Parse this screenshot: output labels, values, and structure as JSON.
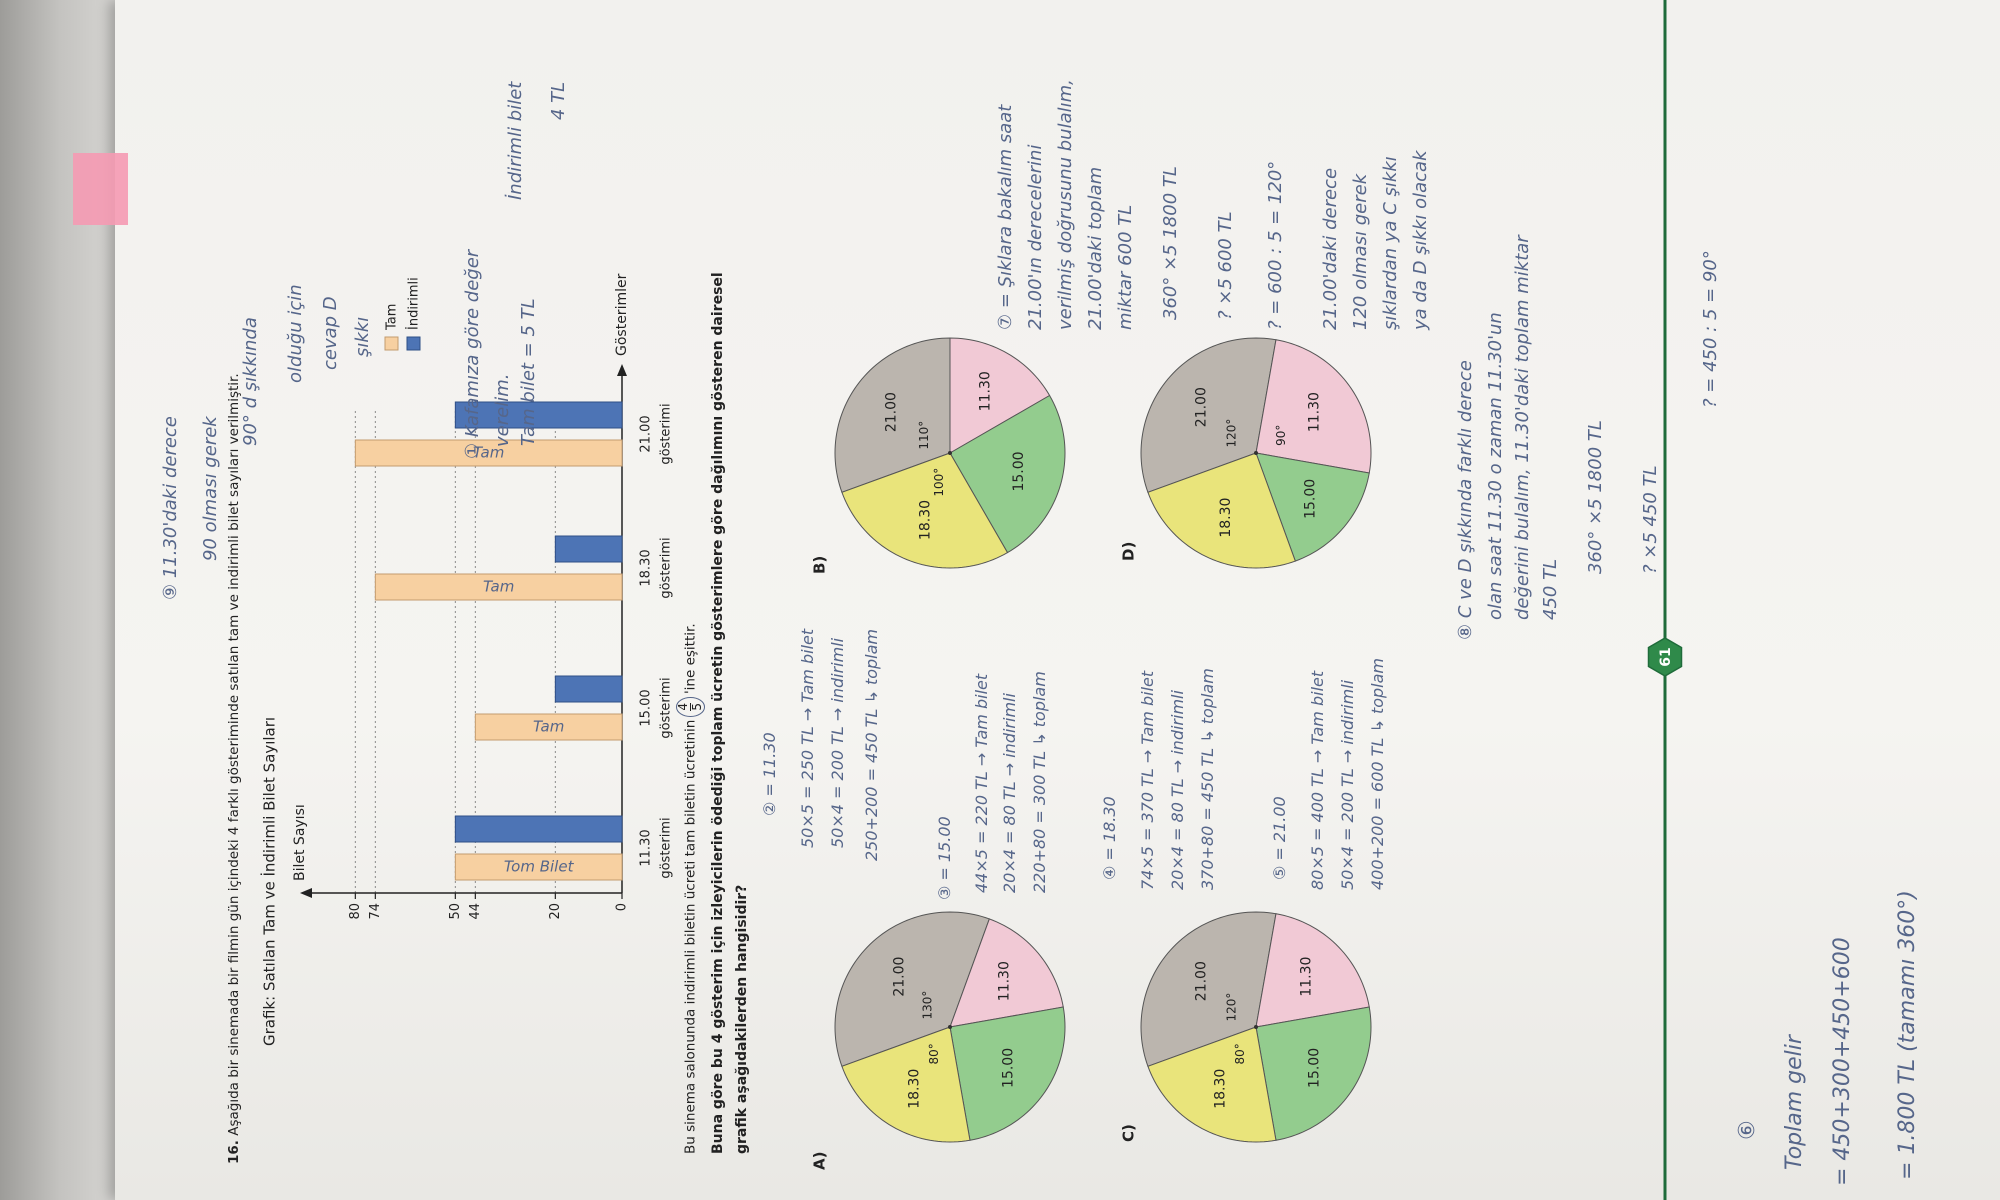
{
  "question": {
    "number": "16.",
    "text": "Aşağıda bir sinemada bir filmin gün içindeki 4 farklı gösteriminde satılan tam ve indirimli bilet sayıları verilmiştir."
  },
  "chart": {
    "type": "bar",
    "title": "Grafik: Satılan Tam ve İndirimli Bilet Sayıları",
    "y_label": "Bilet Sayısı",
    "x_label": "Gösterimler",
    "categories": [
      [
        "11.30",
        "gösterimi"
      ],
      [
        "15.00",
        "gösterimi"
      ],
      [
        "18.30",
        "gösterimi"
      ],
      [
        "21.00",
        "gösterimi"
      ]
    ],
    "series": [
      {
        "name": "Tam",
        "color": "#f7d0a1",
        "values": [
          50,
          44,
          74,
          80
        ]
      },
      {
        "name": "İndirimli",
        "color": "#4d74b5",
        "values": [
          50,
          20,
          20,
          50
        ]
      }
    ],
    "ylim": [
      0,
      90
    ],
    "yticks": [
      0,
      20,
      44,
      50,
      74,
      80
    ],
    "grid": "dotted"
  },
  "statement": {
    "before": "Bu sinema salonunda indirimli biletin ücreti tam biletin ücretinin",
    "numerator": 4,
    "denominator": 5,
    "after": "'ine eşittir."
  },
  "prompt": [
    "Buna göre bu 4 gösterim için izleyicilerin ödediği toplam ücretin gösterimlere göre dağılımını gösteren dairesel",
    "grafik aşağıdakilerden hangisidir?"
  ],
  "options": [
    {
      "letter": "A)",
      "slices": [
        {
          "name": "21.00",
          "color": "#bbb5ae",
          "value": 130,
          "label": "130°"
        },
        {
          "name": "11.30",
          "color": "#f1c9d5",
          "value": 60
        },
        {
          "name": "15.00",
          "color": "#93cc8e",
          "value": 90
        },
        {
          "name": "18.30",
          "color": "#e9e47b",
          "value": 80,
          "label": "80°"
        }
      ]
    },
    {
      "letter": "B)",
      "slices": [
        {
          "name": "21.00",
          "color": "#bbb5ae",
          "value": 110,
          "label": "110°"
        },
        {
          "name": "11.30",
          "color": "#f1c9d5",
          "value": 60
        },
        {
          "name": "15.00",
          "color": "#93cc8e",
          "value": 90
        },
        {
          "name": "18.30",
          "color": "#e9e47b",
          "value": 100,
          "label": "100°"
        }
      ]
    },
    {
      "letter": "C)",
      "slices": [
        {
          "name": "21.00",
          "color": "#bbb5ae",
          "value": 120,
          "label": "120°"
        },
        {
          "name": "11.30",
          "color": "#f1c9d5",
          "value": 70
        },
        {
          "name": "15.00",
          "color": "#93cc8e",
          "value": 90
        },
        {
          "name": "18.30",
          "color": "#e9e47b",
          "value": 80,
          "label": "80°"
        }
      ]
    },
    {
      "letter": "D)",
      "slices": [
        {
          "name": "21.00",
          "color": "#bbb5ae",
          "value": 120,
          "label": "120°"
        },
        {
          "name": "11.30",
          "color": "#f1c9d5",
          "value": 90,
          "label": "90°"
        },
        {
          "name": "15.00",
          "color": "#93cc8e",
          "value": 60
        },
        {
          "name": "18.30",
          "color": "#e9e47b",
          "value": 90
        }
      ]
    }
  ],
  "page_number": "61",
  "bar_notes": [
    "Tom Bilet",
    "Tam",
    "Tam",
    "Tam"
  ],
  "handwriting": [
    "⑨ 11.30'daki derece",
    "90 olması gerek",
    "90° d şıkkında",
    "olduğu için",
    "cevap D",
    "şıkkı",
    "① Kafamıza göre değer",
    "verelim.",
    "Tam bilet = 5 TL",
    "İndirimli bilet",
    "4 TL",
    "② = 11.30",
    "50×5 = 250 TL → Tam bilet",
    "50×4 = 200 TL → indirimli",
    "250+200 = 450 TL ↳ toplam",
    "③ = 15.00",
    "44×5 = 220 TL → Tam bilet",
    "20×4 = 80 TL → indirimli",
    "220+80 = 300 TL ↳ toplam",
    "④ = 18.30",
    "74×5 = 370 TL → Tam bilet",
    "20×4 = 80 TL → indirimli",
    "370+80 = 450 TL ↳ toplam",
    "⑤ = 21.00",
    "80×5 = 400 TL → Tam bilet",
    "50×4 = 200 TL → indirimli",
    "400+200 = 600 TL ↳ toplam",
    "⑦ = Şıklara bakalım saat",
    "21.00'ın derecelerini",
    "verilmiş doğrusunu bulalım,",
    "21.00'daki toplam",
    "miktar 600 TL",
    "360° ×5 1800 TL",
    "? ×5 600 TL",
    "? = 600 : 5 = 120°",
    "21.00'daki derece",
    "120 olması gerek",
    "şıklardan ya C şıkkı",
    "ya da D şıkkı olacak",
    "⑧ C ve D şıkkında farklı derece",
    "olan saat 11.30 o zaman 11.30'un",
    "değerini bulalım, 11.30'daki toplam miktar",
    "450 TL",
    "360° ×5 1800 TL",
    "? ×5 450 TL",
    "? = 450 : 5 = 90°",
    "⑥",
    "Toplam gelir",
    "= 450+300+450+600",
    "= 1.800 TL (tamamı 360°)"
  ]
}
